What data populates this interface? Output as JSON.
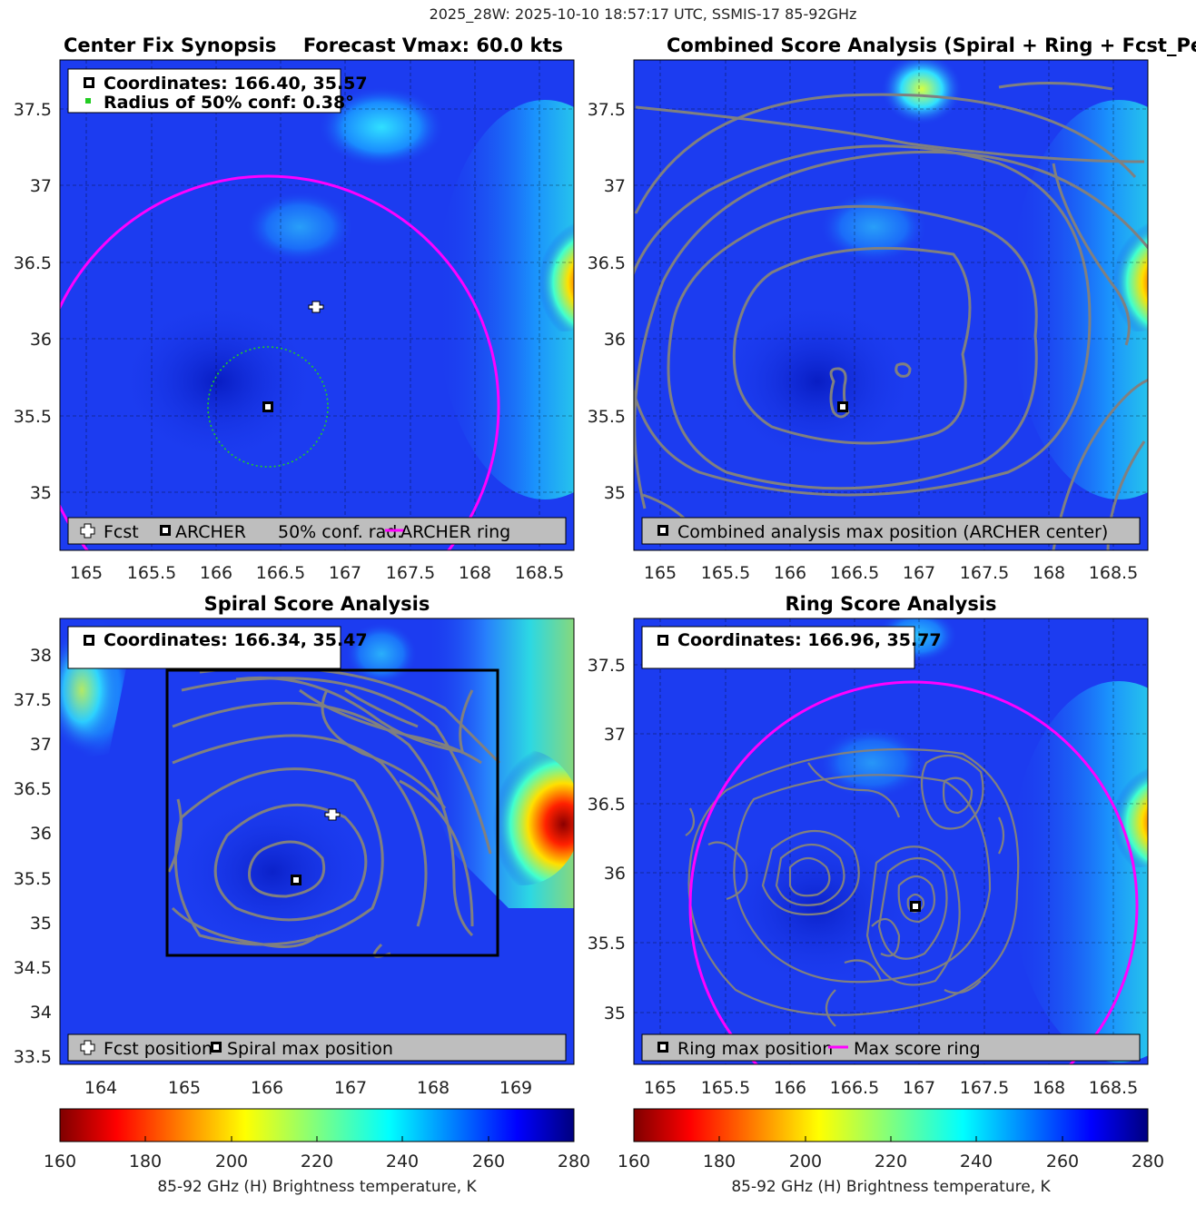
{
  "suptitle": "2025_28W: 2025-10-10 18:57:17 UTC, SSMIS-17 85-92GHz",
  "colors": {
    "ring": "#ff00ff",
    "conf_circle": "#22cc22",
    "contour": "#808080",
    "box": "#000000",
    "legend_bg": "#bebebe",
    "background_tb": "#1c3cf0"
  },
  "chart_data": [
    {
      "type": "heatmap",
      "panel": "center-fix-synopsis",
      "title": "Center Fix Synopsis",
      "title_right": "Forecast Vmax: 60.0 kts",
      "xlim": [
        164.75,
        168.75
      ],
      "ylim": [
        34.6,
        37.8
      ],
      "xticks": [
        165,
        165.5,
        166,
        166.5,
        167,
        167.5,
        168,
        168.5
      ],
      "xtick_labels": [
        "165",
        "165.5",
        "166",
        "166.5",
        "167",
        "167.5",
        "168",
        "168.5"
      ],
      "yticks": [
        35,
        35.5,
        36,
        36.5,
        37,
        37.5
      ],
      "ytick_labels": [
        "35",
        "35.5",
        "36",
        "36.5",
        "37",
        "37.5"
      ],
      "grid": true,
      "info_lines": [
        "Coordinates: 166.40, 35.57",
        "Radius of 50% conf: 0.38°"
      ],
      "legend": [
        "Fcst",
        "ARCHER",
        "50% conf. rad.",
        "ARCHER ring"
      ],
      "markers": {
        "fcst": {
          "x": 166.77,
          "y": 36.21
        },
        "archer": {
          "x": 166.4,
          "y": 35.57
        }
      },
      "conf_radius_deg": 0.38,
      "ring": {
        "x": 166.4,
        "y": 35.57,
        "radius_deg": 1.5
      }
    },
    {
      "type": "heatmap",
      "panel": "combined-score-analysis",
      "title": "Combined Score Analysis (Spiral + Ring + Fcst_Pe",
      "xlim": [
        164.75,
        168.75
      ],
      "ylim": [
        34.6,
        37.8
      ],
      "xticks": [
        165,
        165.5,
        166,
        166.5,
        167,
        167.5,
        168,
        168.5
      ],
      "xtick_labels": [
        "165",
        "165.5",
        "166",
        "166.5",
        "167",
        "167.5",
        "168",
        "168.5"
      ],
      "yticks": [
        35,
        35.5,
        36,
        36.5,
        37,
        37.5
      ],
      "ytick_labels": [
        "35",
        "35.5",
        "36",
        "36.5",
        "37",
        "37.5"
      ],
      "grid": true,
      "legend": [
        "Combined analysis max position (ARCHER center)"
      ],
      "markers": {
        "max": {
          "x": 166.4,
          "y": 35.57
        }
      }
    },
    {
      "type": "heatmap",
      "panel": "spiral-score-analysis",
      "title": "Spiral Score Analysis",
      "xlim": [
        163.5,
        169.7
      ],
      "ylim": [
        33.4,
        38.4
      ],
      "xticks": [
        164,
        165,
        166,
        167,
        168,
        169
      ],
      "xtick_labels": [
        "164",
        "165",
        "166",
        "167",
        "168",
        "169"
      ],
      "yticks": [
        33.5,
        34,
        34.5,
        35,
        35.5,
        36,
        36.5,
        37,
        37.5,
        38
      ],
      "ytick_labels": [
        "33.5",
        "34",
        "34.5",
        "35",
        "35.5",
        "36",
        "36.5",
        "37",
        "37.5",
        "38"
      ],
      "grid": false,
      "info_lines": [
        "Coordinates: 166.34, 35.47"
      ],
      "legend": [
        "Fcst position",
        "Spiral max position"
      ],
      "markers": {
        "fcst": {
          "x": 166.77,
          "y": 36.21
        },
        "max": {
          "x": 166.34,
          "y": 35.47
        }
      },
      "search_box": {
        "xmin": 164.75,
        "xmax": 168.75,
        "ymin": 34.6,
        "ymax": 37.8
      }
    },
    {
      "type": "heatmap",
      "panel": "ring-score-analysis",
      "title": "Ring Score Analysis",
      "xlim": [
        164.75,
        168.75
      ],
      "ylim": [
        34.6,
        37.8
      ],
      "xticks": [
        165,
        165.5,
        166,
        166.5,
        167,
        167.5,
        168,
        168.5
      ],
      "xtick_labels": [
        "165",
        "165.5",
        "166",
        "166.5",
        "167",
        "167.5",
        "168",
        "168.5"
      ],
      "yticks": [
        35,
        35.5,
        36,
        36.5,
        37,
        37.5
      ],
      "ytick_labels": [
        "35",
        "35.5",
        "36",
        "36.5",
        "37",
        "37.5"
      ],
      "grid": true,
      "info_lines": [
        "Coordinates: 166.96, 35.77"
      ],
      "legend": [
        "Ring max position",
        "Max score ring"
      ],
      "markers": {
        "max": {
          "x": 166.96,
          "y": 35.77
        }
      },
      "ring": {
        "x": 166.96,
        "y": 35.77,
        "radius_deg": 1.5
      }
    }
  ],
  "colorbars": [
    {
      "range": [
        160,
        280
      ],
      "ticks": [
        160,
        180,
        200,
        220,
        240,
        260,
        280
      ],
      "tick_labels": [
        "160",
        "180",
        "200",
        "220",
        "240",
        "260",
        "280"
      ],
      "label": "85-92 GHz (H) Brightness temperature, K",
      "colormap": "jet-reversed"
    },
    {
      "range": [
        160,
        280
      ],
      "ticks": [
        160,
        180,
        200,
        220,
        240,
        260,
        280
      ],
      "tick_labels": [
        "160",
        "180",
        "200",
        "220",
        "240",
        "260",
        "280"
      ],
      "label": "85-92 GHz (H) Brightness temperature, K",
      "colormap": "jet-reversed"
    }
  ]
}
